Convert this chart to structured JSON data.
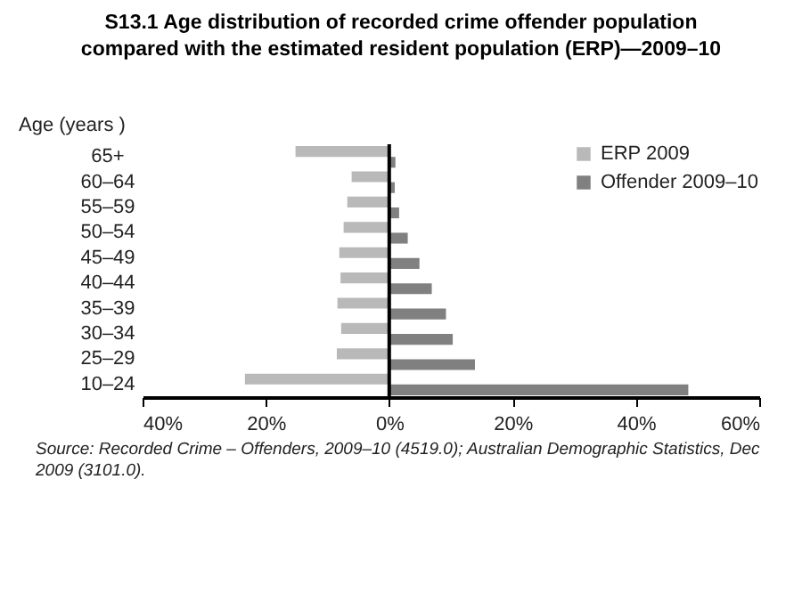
{
  "chart_data": {
    "type": "bar",
    "orientation": "horizontal",
    "title": "S13.1   Age distribution of recorded crime offender population compared with the estimated resident population (ERP)—2009–10",
    "ylabel": "Age (years )",
    "categories": [
      "65+",
      "60–64",
      "55–59",
      "50–54",
      "45–49",
      "40–44",
      "35–39",
      "30–34",
      "25–29",
      "10–24"
    ],
    "series": [
      {
        "name": "ERP 2009",
        "color": "#b9b9b9",
        "values": [
          -15.2,
          -6.1,
          -6.8,
          -7.4,
          -8.1,
          -7.9,
          -8.4,
          -7.8,
          -8.5,
          -23.4
        ]
      },
      {
        "name": "Offender 2009–10",
        "color": "#808080",
        "values": [
          1.0,
          0.9,
          1.6,
          3.0,
          4.9,
          6.9,
          9.2,
          10.3,
          13.9,
          48.5
        ]
      }
    ],
    "xlim": [
      -40,
      60
    ],
    "xticks": [
      {
        "value": -40,
        "label": "40%"
      },
      {
        "value": -20,
        "label": "20%"
      },
      {
        "value": 0,
        "label": "0%"
      },
      {
        "value": 20,
        "label": "20%"
      },
      {
        "value": 40,
        "label": "40%"
      },
      {
        "value": 60,
        "label": "60%"
      }
    ],
    "ref_lines": [
      {
        "axis": "x",
        "value": 0,
        "color": "#000000"
      }
    ],
    "legend": "top right",
    "grid": false,
    "annotations": [
      "Source: Recorded Crime – Offenders, 2009–10 (4519.0); Australian Demographic Statistics, Dec 2009 (3101.0)."
    ]
  }
}
